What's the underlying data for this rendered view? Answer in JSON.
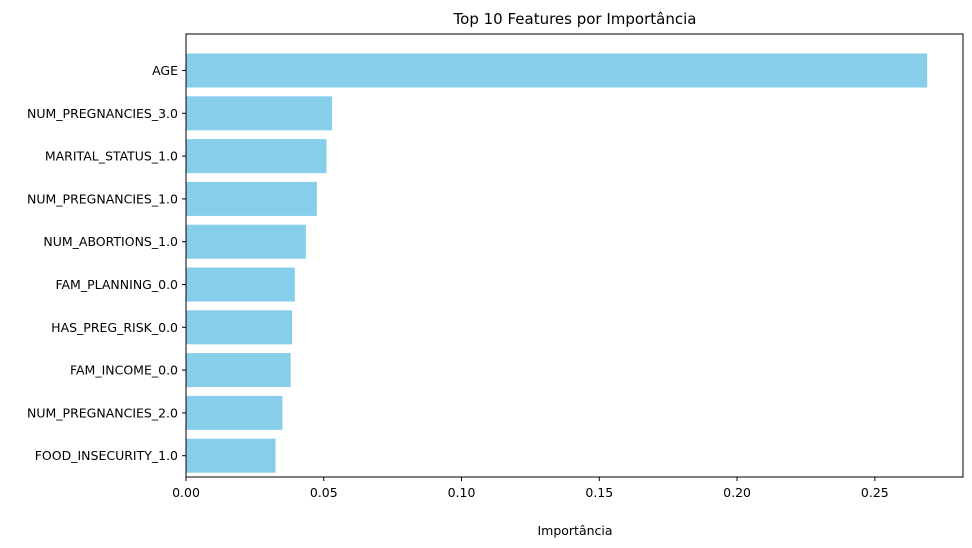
{
  "chart_data": {
    "type": "bar",
    "orientation": "horizontal",
    "title": "Top 10 Features por Importância",
    "xlabel": "Importância",
    "ylabel": "",
    "xlim": [
      0,
      0.282
    ],
    "xticks": [
      0.0,
      0.05,
      0.1,
      0.15,
      0.2,
      0.25
    ],
    "xtick_labels": [
      "0.00",
      "0.05",
      "0.10",
      "0.15",
      "0.20",
      "0.25"
    ],
    "bar_color": "#87ceeb",
    "grid": false,
    "categories": [
      "AGE",
      "NUM_PREGNANCIES_3.0",
      "MARITAL_STATUS_1.0",
      "NUM_PREGNANCIES_1.0",
      "NUM_ABORTIONS_1.0",
      "FAM_PLANNING_0.0",
      "HAS_PREG_RISK_0.0",
      "FAM_INCOME_0.0",
      "NUM_PREGNANCIES_2.0",
      "FOOD_INSECURITY_1.0"
    ],
    "values": [
      0.269,
      0.053,
      0.051,
      0.0475,
      0.0435,
      0.0395,
      0.0385,
      0.038,
      0.035,
      0.0325
    ]
  }
}
